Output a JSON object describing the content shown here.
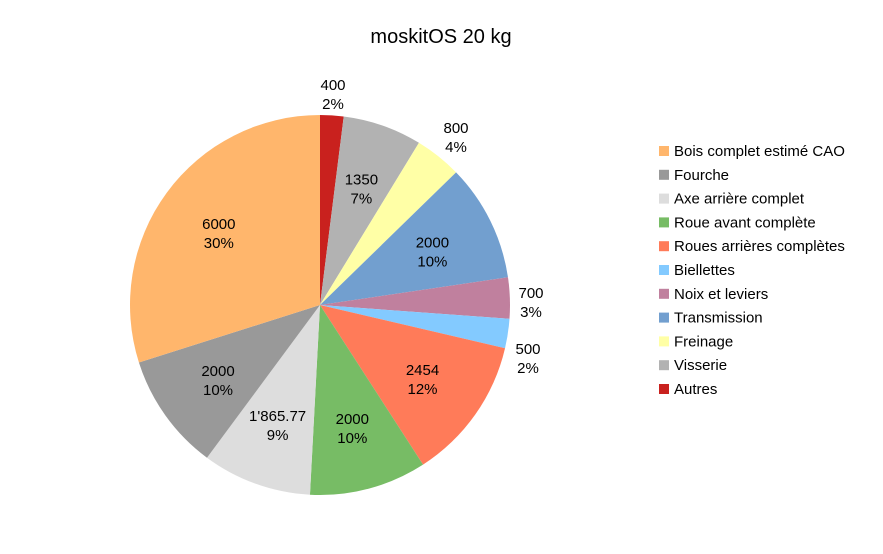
{
  "chart_data": {
    "type": "pie",
    "title": "moskitOS 20 kg",
    "legend_position": "right",
    "slices": [
      {
        "name": "Bois complet estimé CAO",
        "value": 6000,
        "value_label": "6000",
        "percent_label": "30%",
        "color": "#FFB66C"
      },
      {
        "name": "Fourche",
        "value": 2000,
        "value_label": "2000",
        "percent_label": "10%",
        "color": "#999999"
      },
      {
        "name": "Axe arrière complet",
        "value": 1865.77,
        "value_label": "1'865.77",
        "percent_label": "9%",
        "color": "#DDDDDD"
      },
      {
        "name": "Roue avant complète",
        "value": 2000,
        "value_label": "2000",
        "percent_label": "10%",
        "color": "#77BC65"
      },
      {
        "name": "Roues arrières complètes",
        "value": 2454,
        "value_label": "2454",
        "percent_label": "12%",
        "color": "#FF7B59"
      },
      {
        "name": "Biellettes",
        "value": 500,
        "value_label": "500",
        "percent_label": "2%",
        "color": "#83CAFF"
      },
      {
        "name": "Noix et leviers",
        "value": 700,
        "value_label": "700",
        "percent_label": "3%",
        "color": "#C0809E"
      },
      {
        "name": "Transmission",
        "value": 2000,
        "value_label": "2000",
        "percent_label": "10%",
        "color": "#729FCF"
      },
      {
        "name": "Freinage",
        "value": 800,
        "value_label": "800",
        "percent_label": "4%",
        "color": "#FFFFA6"
      },
      {
        "name": "Visserie",
        "value": 1350,
        "value_label": "1350",
        "percent_label": "7%",
        "color": "#B2B2B2"
      },
      {
        "name": "Autres",
        "value": 400,
        "value_label": "400",
        "percent_label": "2%",
        "color": "#C9211E"
      }
    ],
    "slice_order": [
      "Autres",
      "Visserie",
      "Freinage",
      "Transmission",
      "Noix et leviers",
      "Biellettes",
      "Roues arrières complètes",
      "Roue avant complète",
      "Axe arrière complet",
      "Fourche",
      "Bois complet estimé CAO"
    ]
  }
}
